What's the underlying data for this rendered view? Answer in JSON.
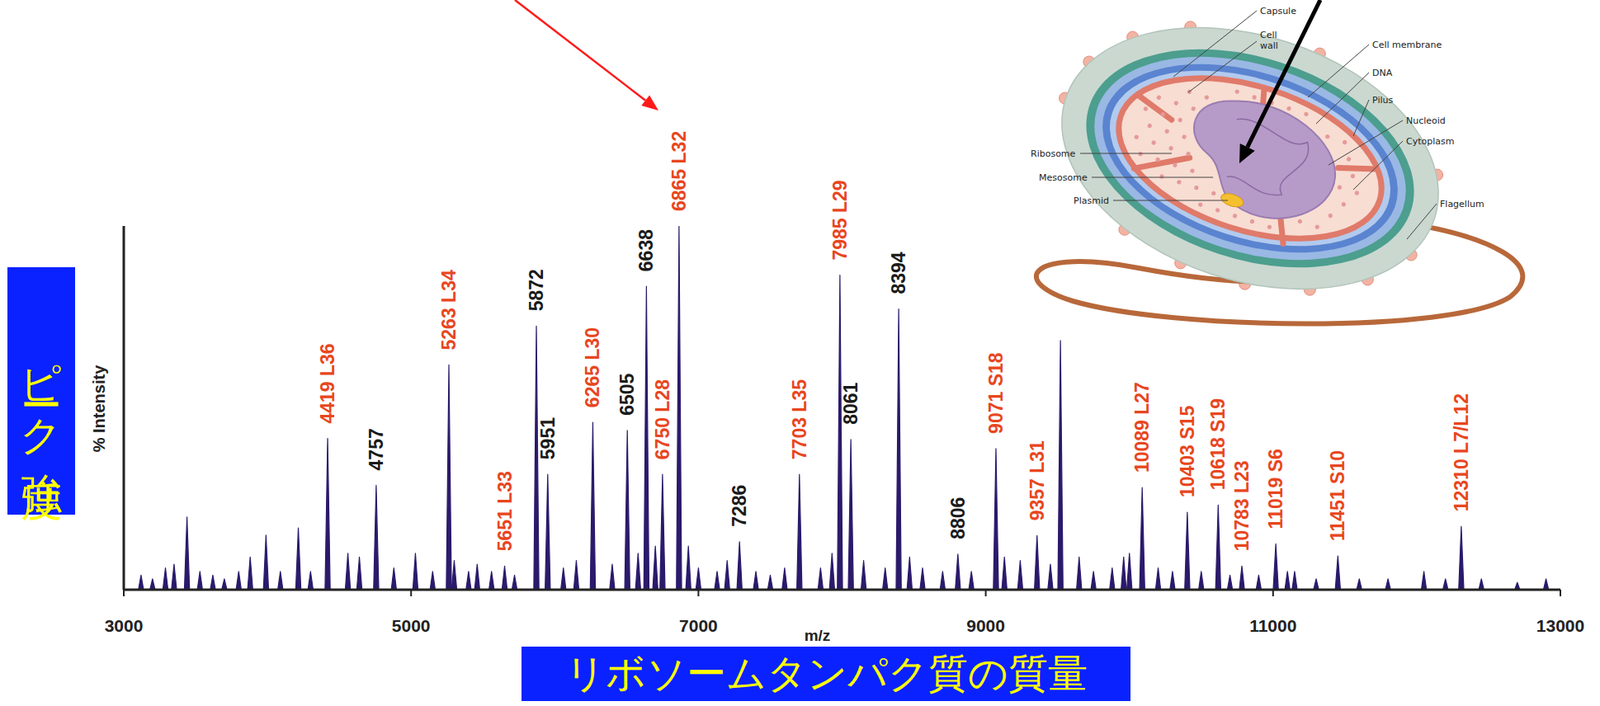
{
  "chart_data": {
    "type": "spectrum",
    "x_label": "m/z",
    "y_label": "% Intensity",
    "y_caption": "ピーク強度",
    "x_caption": "リボソームタンパク質の質量",
    "color": "#2b1a6b",
    "xlim": [
      3000,
      13000
    ],
    "xticks": [
      3000,
      5000,
      7000,
      9000,
      11000,
      13000
    ],
    "ylim": [
      0,
      100
    ],
    "grid": false,
    "tick_labels": "x",
    "x": [
      3120,
      3200,
      3290,
      3350,
      3440,
      3530,
      3620,
      3700,
      3800,
      3880,
      3990,
      4090,
      4215,
      4300,
      4419,
      4560,
      4640,
      4757,
      4880,
      5030,
      5150,
      5263,
      5300,
      5400,
      5460,
      5560,
      5651,
      5720,
      5872,
      5951,
      6060,
      6150,
      6265,
      6400,
      6505,
      6580,
      6638,
      6700,
      6750,
      6865,
      6930,
      7000,
      7130,
      7200,
      7286,
      7400,
      7500,
      7600,
      7703,
      7850,
      7930,
      7985,
      8061,
      8150,
      8300,
      8394,
      8470,
      8560,
      8700,
      8806,
      8900,
      9071,
      9130,
      9240,
      9357,
      9450,
      9520,
      9650,
      9750,
      9880,
      9960,
      10000,
      10089,
      10200,
      10300,
      10403,
      10500,
      10618,
      10700,
      10783,
      10900,
      11019,
      11100,
      11150,
      11300,
      11451,
      11600,
      11800,
      12050,
      12200,
      12310,
      12450,
      12700,
      12900
    ],
    "values": [
      4,
      3,
      6,
      7,
      20,
      5,
      4,
      3,
      5,
      9,
      15,
      5,
      17,
      5,
      41.6,
      10,
      9,
      28.7,
      6,
      10,
      5,
      61.8,
      8,
      5,
      7,
      5,
      6.5,
      4,
      72.5,
      31.7,
      6,
      8,
      46,
      7,
      43.8,
      10,
      83.4,
      12,
      31.7,
      100,
      12,
      6,
      5,
      8,
      13.2,
      5,
      4,
      6,
      31.7,
      6,
      10,
      86.5,
      41.3,
      8,
      6,
      77.2,
      9,
      6,
      5,
      9.8,
      5,
      38.8,
      9,
      8,
      14.9,
      7,
      68.5,
      9,
      5,
      6,
      9,
      10,
      28.1,
      6,
      5,
      21.3,
      5,
      23.3,
      4,
      6.5,
      4,
      12.6,
      5,
      5,
      3,
      9.3,
      3,
      3,
      5,
      3,
      17.4,
      3,
      2,
      3
    ],
    "annotations": [
      {
        "text": "4419 L36",
        "x": 4419,
        "y": 41.6,
        "color": "#e8461e"
      },
      {
        "text": "4757",
        "x": 4757,
        "y": 28.7,
        "color": "#1a1a1a"
      },
      {
        "text": "5263 L34",
        "x": 5263,
        "y": 61.8,
        "color": "#e8461e"
      },
      {
        "text": "5651 L33",
        "x": 5651,
        "y": 6.5,
        "color": "#e8461e"
      },
      {
        "text": "5872",
        "x": 5872,
        "y": 72.5,
        "color": "#1a1a1a"
      },
      {
        "text": "5951",
        "x": 5951,
        "y": 31.7,
        "color": "#1a1a1a"
      },
      {
        "text": "6265 L30",
        "x": 6265,
        "y": 46,
        "color": "#e8461e"
      },
      {
        "text": "6505",
        "x": 6505,
        "y": 43.8,
        "color": "#1a1a1a"
      },
      {
        "text": "6638",
        "x": 6638,
        "y": 83.4,
        "color": "#1a1a1a"
      },
      {
        "text": "6750 L28",
        "x": 6750,
        "y": 31.7,
        "color": "#e8461e"
      },
      {
        "text": "6865 L32",
        "x": 6865,
        "y": 100,
        "color": "#e8461e"
      },
      {
        "text": "7286",
        "x": 7286,
        "y": 13.2,
        "color": "#1a1a1a"
      },
      {
        "text": "7703 L35",
        "x": 7703,
        "y": 31.7,
        "color": "#e8461e"
      },
      {
        "text": "7985 L29",
        "x": 7985,
        "y": 86.5,
        "color": "#e8461e"
      },
      {
        "text": "8061",
        "x": 8061,
        "y": 41.3,
        "color": "#1a1a1a"
      },
      {
        "text": "8394",
        "x": 8394,
        "y": 77.2,
        "color": "#1a1a1a"
      },
      {
        "text": "8806",
        "x": 8806,
        "y": 9.8,
        "color": "#1a1a1a"
      },
      {
        "text": "9071 S18",
        "x": 9071,
        "y": 38.8,
        "color": "#e8461e"
      },
      {
        "text": "9357 L31",
        "x": 9357,
        "y": 14.9,
        "color": "#e8461e"
      },
      {
        "text": "10089 L27",
        "x": 10089,
        "y": 28.1,
        "color": "#e8461e"
      },
      {
        "text": "10403 S15",
        "x": 10403,
        "y": 21.3,
        "color": "#e8461e"
      },
      {
        "text": "10618 S19",
        "x": 10618,
        "y": 23.3,
        "color": "#e8461e"
      },
      {
        "text": "10783 L23",
        "x": 10783,
        "y": 6.5,
        "color": "#e8461e"
      },
      {
        "text": "11019 S6",
        "x": 11019,
        "y": 12.6,
        "color": "#e8461e"
      },
      {
        "text": "11451 S10",
        "x": 11451,
        "y": 9.3,
        "color": "#e8461e"
      },
      {
        "text": "12310 L7/L12",
        "x": 12310,
        "y": 17.4,
        "color": "#e8461e"
      }
    ]
  },
  "illustration": {
    "labels": [
      "Capsule",
      "Cell wall",
      "Cell membrane",
      "DNA",
      "Pilus",
      "Nucleoid",
      "Cytoplasm",
      "Ribosome",
      "Mesosome",
      "Plasmid",
      "Flagellum"
    ]
  }
}
